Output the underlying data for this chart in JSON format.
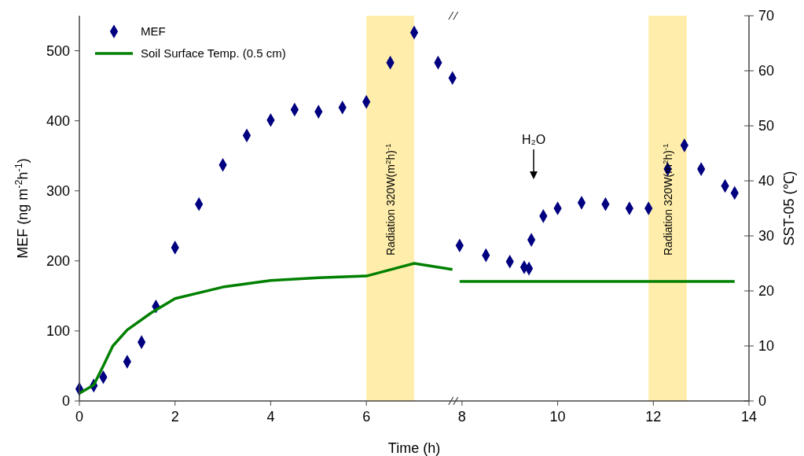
{
  "chart_data": {
    "type": "scatter",
    "xlabel": "Time (h)",
    "ylabel": "MEF (ng m$^{-2}$h$^{-1}$)",
    "y2label": "SST-05 (℃)",
    "xlim": [
      0,
      14
    ],
    "xticks": [
      0,
      2,
      4,
      6,
      8,
      10,
      12,
      14
    ],
    "ylim": [
      0,
      550
    ],
    "yticks": [
      0,
      100,
      200,
      300,
      400,
      500
    ],
    "y2lim": [
      0,
      70
    ],
    "y2ticks": [
      0,
      10,
      20,
      30,
      40,
      50,
      60,
      70
    ],
    "legend": "top left",
    "grid": false,
    "series": [
      {
        "name": "MEF",
        "marker": "diamond",
        "color": "#000080",
        "x": [
          0,
          0.3,
          0.5,
          1,
          1.3,
          1.6,
          2,
          2.5,
          3,
          3.5,
          4,
          4.5,
          5,
          5.5,
          6,
          6.5,
          7,
          7.5,
          7.8,
          7.95,
          8.5,
          9,
          9.3,
          9.4,
          9.45,
          9.7,
          10,
          10.5,
          11,
          11.5,
          11.9,
          12.3,
          12.65,
          13,
          13.5,
          13.7
        ],
        "values": [
          17,
          22,
          34,
          56,
          84,
          135,
          219,
          281,
          337,
          379,
          401,
          416,
          413,
          419,
          427,
          483,
          526,
          483,
          461,
          222,
          208,
          199,
          191,
          189,
          230,
          264,
          275,
          283,
          281,
          275,
          275,
          331,
          365,
          331,
          307,
          297
        ]
      },
      {
        "name": "Soil Surface Temp. (0.5 cm)",
        "type": "line",
        "axis": "y2",
        "color": "#008000",
        "x": [
          0,
          0.3,
          0.5,
          0.7,
          1,
          1.5,
          2,
          3,
          4,
          5,
          6,
          7,
          7.8,
          7.9,
          7.95,
          13.7
        ],
        "values": [
          1.4,
          2.9,
          6.4,
          10,
          12.9,
          16,
          18.6,
          20.7,
          21.9,
          22.4,
          22.7,
          25,
          23.9,
          null,
          21.7,
          21.7
        ]
      }
    ],
    "bands": [
      {
        "axis": "x",
        "from": 6,
        "to": 7,
        "label": "Radiation 320W(m$^{2}$h)$^{-1}$",
        "color": "#ffe066"
      },
      {
        "axis": "x",
        "from": 11.9,
        "to": 12.7,
        "label": "Radiation 320W(m$^{2}$h)$^{-1}$",
        "color": "#ffe066"
      }
    ],
    "annotations": [
      "H₂O"
    ]
  }
}
